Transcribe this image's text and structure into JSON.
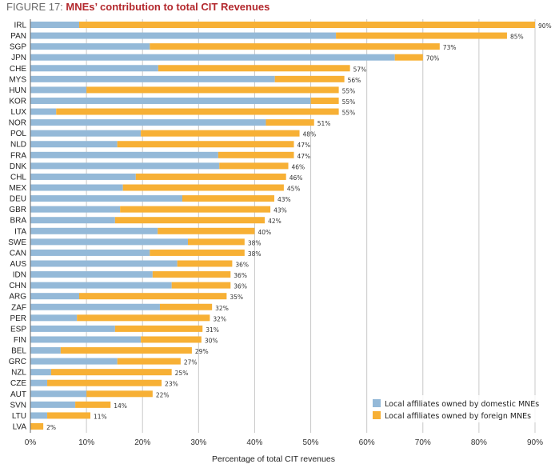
{
  "figure": {
    "prefix": "FIGURE 17: ",
    "title": "MNEs’ contribution to total CIT Revenues"
  },
  "chart_data": {
    "type": "bar",
    "orientation": "horizontal",
    "stacked": true,
    "title": "MNEs’ contribution to total CIT Revenues",
    "xlabel": "Percentage of total CIT revenues",
    "ylabel": "",
    "xlim": [
      0,
      90
    ],
    "xticks": [
      "0%",
      "10%",
      "20%",
      "30%",
      "40%",
      "50%",
      "60%",
      "70%",
      "80%",
      "90%"
    ],
    "grid": "vertical",
    "legend_position": "bottom-right",
    "colors": {
      "domestic": "#94b9d8",
      "foreign": "#f7b035"
    },
    "categories": [
      "IRL",
      "PAN",
      "SGP",
      "JPN",
      "CHE",
      "MYS",
      "HUN",
      "KOR",
      "LUX",
      "NOR",
      "POL",
      "NLD",
      "FRA",
      "DNK",
      "CHL",
      "MEX",
      "DEU",
      "GBR",
      "BRA",
      "ITA",
      "SWE",
      "CAN",
      "AUS",
      "IDN",
      "CHN",
      "ARG",
      "ZAF",
      "PER",
      "ESP",
      "FIN",
      "BEL",
      "GRC",
      "NZL",
      "CZE",
      "AUT",
      "SVN",
      "LTU",
      "LVA"
    ],
    "series": [
      {
        "name": "Local affiliates owned by domestic MNEs",
        "values": [
          8.7,
          54.5,
          21.3,
          65.0,
          22.8,
          43.6,
          10.0,
          50.0,
          4.6,
          42.0,
          19.7,
          15.5,
          33.5,
          33.7,
          18.8,
          16.5,
          27.1,
          16.0,
          15.1,
          22.7,
          28.1,
          21.3,
          26.2,
          21.8,
          25.2,
          8.7,
          23.1,
          8.3,
          15.1,
          19.7,
          5.4,
          15.5,
          3.7,
          3.0,
          10.0,
          8.0,
          3.0,
          0.0
        ]
      },
      {
        "name": "Local affiliates owned by foreign MNEs",
        "values": [
          81.3,
          30.5,
          51.7,
          5.0,
          34.2,
          12.4,
          45.0,
          5.0,
          50.4,
          8.6,
          28.3,
          31.5,
          13.5,
          12.3,
          26.8,
          28.7,
          16.4,
          26.8,
          26.7,
          17.3,
          10.1,
          16.9,
          9.8,
          13.9,
          10.5,
          26.3,
          9.3,
          23.7,
          15.6,
          10.8,
          23.4,
          11.3,
          21.5,
          20.4,
          11.8,
          6.3,
          7.7,
          2.3
        ]
      }
    ],
    "totals": [
      90,
      85,
      73,
      70,
      57,
      56,
      55,
      55,
      55,
      51,
      48,
      47,
      47,
      46,
      46,
      45,
      43,
      43,
      42,
      40,
      38,
      38,
      36,
      36,
      36,
      35,
      32,
      32,
      31,
      30,
      29,
      27,
      25,
      23,
      22,
      14,
      11,
      2
    ],
    "total_labels": [
      "90%",
      "85%",
      "73%",
      "70%",
      "57%",
      "56%",
      "55%",
      "55%",
      "55%",
      "51%",
      "48%",
      "47%",
      "47%",
      "46%",
      "46%",
      "45%",
      "43%",
      "43%",
      "42%",
      "40%",
      "38%",
      "38%",
      "36%",
      "36%",
      "36%",
      "35%",
      "32%",
      "32%",
      "31%",
      "30%",
      "29%",
      "27%",
      "25%",
      "23%",
      "22%",
      "14%",
      "11%",
      "2%"
    ]
  }
}
